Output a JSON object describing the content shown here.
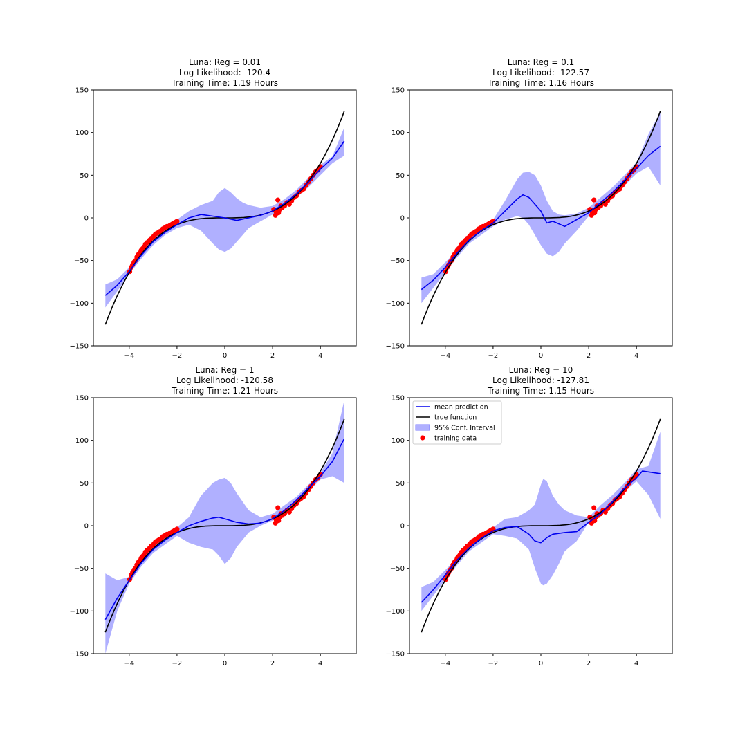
{
  "colors": {
    "mean": "#0000ee",
    "true": "#000000",
    "band": "#7b7bff",
    "points": "#ff0000"
  },
  "legend": {
    "location": "upper-left",
    "items": [
      {
        "key": "mean",
        "label": "mean prediction"
      },
      {
        "key": "true",
        "label": "true function"
      },
      {
        "key": "band",
        "label": "95% Conf. Interval"
      },
      {
        "key": "points",
        "label": "training data"
      }
    ]
  },
  "chart_data": [
    {
      "type": "line",
      "title": [
        "Luna: Reg = 0.01",
        "Log Likelihood: -120.4",
        "Training Time: 1.19 Hours"
      ],
      "xlim": [
        -5.5,
        5.5
      ],
      "ylim": [
        -150,
        150
      ],
      "xticks": [
        -4,
        -2,
        0,
        2,
        4
      ],
      "yticks": [
        -150,
        -100,
        -50,
        0,
        50,
        100,
        150
      ],
      "legend": false,
      "band_x": [
        -5,
        -4.5,
        -4,
        -3.5,
        -3,
        -2.5,
        -2,
        -1.5,
        -1,
        -0.5,
        -0.25,
        0,
        0.25,
        0.5,
        0.75,
        1,
        1.5,
        2,
        2.5,
        3,
        3.5,
        4,
        4.5,
        5
      ],
      "band_upper": [
        -78,
        -72,
        -58,
        -38,
        -22,
        -10,
        -2,
        8,
        15,
        20,
        30,
        35,
        30,
        23,
        18,
        15,
        12,
        14,
        22,
        33,
        47,
        62,
        72,
        106
      ],
      "band_lower": [
        -105,
        -86,
        -66,
        -48,
        -32,
        -20,
        -12,
        -8,
        -15,
        -30,
        -37,
        -40,
        -36,
        -28,
        -20,
        -12,
        -4,
        4,
        12,
        24,
        36,
        50,
        64,
        73
      ],
      "mean_x": [
        -5,
        -4.5,
        -4,
        -3.5,
        -3,
        -2.5,
        -2,
        -1.5,
        -1,
        -0.5,
        0,
        0.5,
        1,
        1.5,
        2,
        2.5,
        3,
        3.5,
        4,
        4.5,
        5
      ],
      "mean_y": [
        -91,
        -79,
        -63,
        -44,
        -28,
        -17,
        -8,
        0,
        4,
        2,
        0,
        -3,
        0,
        3,
        8,
        17,
        28,
        42,
        57,
        70,
        90
      ]
    },
    {
      "type": "line",
      "title": [
        "Luna: Reg = 0.1",
        "Log Likelihood: -122.57",
        "Training Time: 1.16 Hours"
      ],
      "xlim": [
        -5.5,
        5.5
      ],
      "ylim": [
        -150,
        150
      ],
      "xticks": [
        -4,
        -2,
        0,
        2,
        4
      ],
      "yticks": [
        -150,
        -100,
        -50,
        0,
        50,
        100,
        150
      ],
      "legend": false,
      "band_x": [
        -5,
        -4.5,
        -4,
        -3.5,
        -3,
        -2.5,
        -2,
        -1.5,
        -1,
        -0.75,
        -0.5,
        -0.25,
        0,
        0.25,
        0.5,
        0.75,
        1,
        1.5,
        2,
        2.5,
        3,
        3.5,
        4,
        4.5,
        5
      ],
      "band_upper": [
        -70,
        -66,
        -52,
        -38,
        -24,
        -12,
        -2,
        20,
        45,
        53,
        54,
        50,
        38,
        20,
        8,
        4,
        3,
        5,
        12,
        24,
        36,
        50,
        65,
        98,
        124
      ],
      "band_lower": [
        -100,
        -82,
        -64,
        -46,
        -30,
        -20,
        -10,
        -2,
        2,
        0,
        -8,
        -20,
        -32,
        -42,
        -45,
        -40,
        -30,
        -15,
        2,
        12,
        24,
        38,
        52,
        60,
        38
      ],
      "mean_x": [
        -5,
        -4.5,
        -4,
        -3.5,
        -3,
        -2.5,
        -2,
        -1.5,
        -1,
        -0.75,
        -0.5,
        -0.25,
        0,
        0.25,
        0.5,
        1,
        1.5,
        2,
        2.5,
        3,
        3.5,
        4,
        4.5,
        5
      ],
      "mean_y": [
        -84,
        -73,
        -58,
        -41,
        -26,
        -15,
        -6,
        8,
        22,
        27,
        24,
        16,
        8,
        -6,
        -4,
        -10,
        -2,
        6,
        18,
        30,
        44,
        58,
        73,
        84
      ]
    },
    {
      "type": "line",
      "title": [
        "Luna: Reg = 1",
        "Log Likelihood: -120.58",
        "Training Time: 1.21 Hours"
      ],
      "xlim": [
        -5.5,
        5.5
      ],
      "ylim": [
        -150,
        150
      ],
      "xticks": [
        -4,
        -2,
        0,
        2,
        4
      ],
      "yticks": [
        -150,
        -100,
        -50,
        0,
        50,
        100,
        150
      ],
      "legend": false,
      "band_x": [
        -5,
        -4.5,
        -4,
        -3.5,
        -3,
        -2.5,
        -2,
        -1.5,
        -1,
        -0.5,
        -0.25,
        0,
        0.25,
        0.5,
        1,
        1.5,
        2,
        2.5,
        3,
        3.5,
        4,
        4.5,
        5
      ],
      "band_upper": [
        -56,
        -64,
        -60,
        -40,
        -24,
        -12,
        -2,
        10,
        35,
        50,
        54,
        56,
        50,
        38,
        18,
        10,
        14,
        24,
        34,
        48,
        62,
        85,
        147
      ],
      "band_lower": [
        -150,
        -100,
        -68,
        -48,
        -32,
        -22,
        -12,
        -20,
        -25,
        -28,
        -35,
        -45,
        -38,
        -25,
        -8,
        0,
        6,
        14,
        26,
        40,
        54,
        58,
        50
      ],
      "mean_x": [
        -5,
        -4.5,
        -4,
        -3.5,
        -3,
        -2.5,
        -2,
        -1.5,
        -1,
        -0.5,
        -0.25,
        0,
        0.5,
        1,
        1.5,
        2,
        2.5,
        3,
        3.5,
        4,
        4.5,
        5
      ],
      "mean_y": [
        -110,
        -85,
        -64,
        -44,
        -28,
        -17,
        -8,
        0,
        5,
        9,
        10,
        8,
        4,
        2,
        3,
        8,
        18,
        30,
        44,
        58,
        75,
        102
      ]
    },
    {
      "type": "line",
      "title": [
        "Luna: Reg = 10",
        "Log Likelihood: -127.81",
        "Training Time: 1.15 Hours"
      ],
      "xlim": [
        -5.5,
        5.5
      ],
      "ylim": [
        -150,
        150
      ],
      "xticks": [
        -4,
        -2,
        0,
        2,
        4
      ],
      "yticks": [
        -150,
        -100,
        -50,
        0,
        50,
        100,
        150
      ],
      "legend": true,
      "band_x": [
        -5,
        -4.5,
        -4,
        -3.5,
        -3,
        -2.5,
        -2,
        -1.5,
        -1,
        -0.5,
        -0.25,
        0,
        0.1,
        0.25,
        0.5,
        0.75,
        1,
        1.5,
        2,
        2.5,
        3,
        3.5,
        4,
        4.5,
        5
      ],
      "band_upper": [
        -72,
        -66,
        -52,
        -38,
        -24,
        -12,
        -2,
        8,
        10,
        18,
        25,
        48,
        55,
        52,
        35,
        25,
        18,
        12,
        10,
        24,
        36,
        50,
        66,
        70,
        110
      ],
      "band_lower": [
        -100,
        -82,
        -64,
        -46,
        -30,
        -20,
        -10,
        -12,
        -15,
        -28,
        -50,
        -68,
        -70,
        -68,
        -58,
        -45,
        -30,
        -18,
        4,
        14,
        26,
        40,
        52,
        36,
        8
      ],
      "mean_x": [
        -5,
        -4.5,
        -4,
        -3.5,
        -3,
        -2.5,
        -2,
        -1.5,
        -1,
        -0.5,
        -0.25,
        0,
        0.25,
        0.5,
        1,
        1.5,
        2,
        2.5,
        3,
        3.5,
        4,
        4.25,
        4.5,
        5
      ],
      "mean_y": [
        -90,
        -75,
        -58,
        -40,
        -26,
        -15,
        -6,
        -2,
        -1,
        -10,
        -18,
        -20,
        -14,
        -10,
        -8,
        -7,
        4,
        14,
        28,
        44,
        56,
        64,
        63,
        61
      ]
    }
  ],
  "training_points": {
    "x": [
      -3.98,
      -3.92,
      -3.86,
      -3.8,
      -3.74,
      -3.68,
      -3.62,
      -3.56,
      -3.5,
      -3.44,
      -3.38,
      -3.32,
      -3.26,
      -3.2,
      -3.14,
      -3.08,
      -3.02,
      -2.96,
      -2.9,
      -2.84,
      -2.78,
      -2.72,
      -2.66,
      -2.6,
      -2.54,
      -2.48,
      -2.42,
      -2.36,
      -2.3,
      -2.24,
      -2.18,
      -2.12,
      -2.06,
      -2.0,
      2.05,
      2.1,
      2.15,
      2.2,
      2.25,
      2.3,
      2.35,
      2.4,
      2.5,
      2.6,
      2.7,
      2.8,
      2.9,
      3.0,
      3.1,
      3.2,
      3.3,
      3.4,
      3.5,
      3.6,
      3.7,
      3.8,
      3.9,
      4.0,
      2.12,
      2.22
    ],
    "y": [
      -63,
      -58,
      -55,
      -52,
      -50,
      -46,
      -43,
      -41,
      -38,
      -36,
      -34,
      -31,
      -29,
      -28,
      -26,
      -24,
      -23,
      -21,
      -19,
      -18,
      -17,
      -16,
      -15,
      -13,
      -12,
      -11,
      -10,
      -10,
      -9,
      -8,
      -7,
      -6,
      -5,
      -4,
      10,
      9,
      7,
      8,
      6,
      10,
      14,
      12,
      14,
      18,
      16,
      20,
      24,
      26,
      30,
      32,
      34,
      38,
      42,
      46,
      50,
      54,
      56,
      60,
      3,
      21
    ]
  },
  "true_function": "x^3"
}
